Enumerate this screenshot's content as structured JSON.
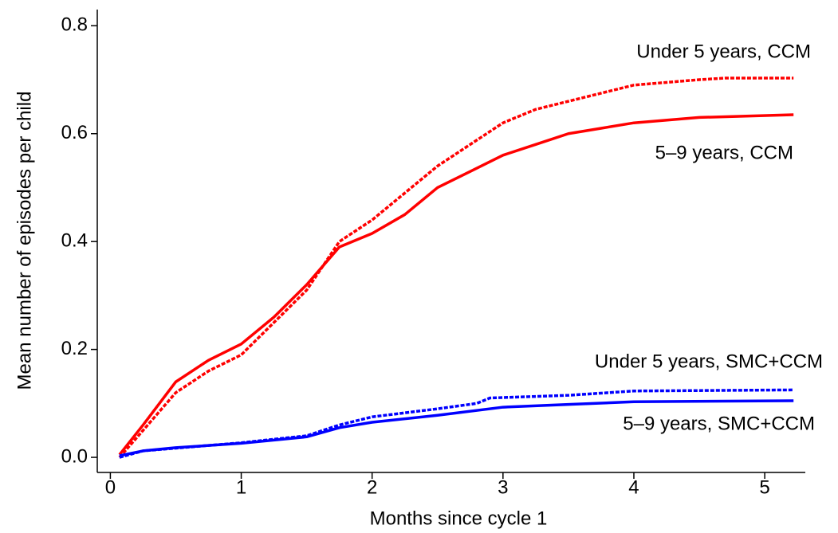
{
  "chart_data": {
    "type": "line",
    "xlabel": "Months since cycle 1",
    "ylabel": "Mean number of episodes per child",
    "xlim": [
      -0.1,
      5.31
    ],
    "ylim": [
      -0.028,
      0.83
    ],
    "xticks": [
      0,
      1,
      2,
      3,
      4,
      5
    ],
    "yticks": [
      {
        "value": 0,
        "label": "0.0"
      },
      {
        "value": 0.2,
        "label": "0.2"
      },
      {
        "value": 0.4,
        "label": "0.4"
      },
      {
        "value": 0.6,
        "label": "0.6"
      },
      {
        "value": 0.8,
        "label": "0.8"
      }
    ],
    "grid": false,
    "series": [
      {
        "name": "Under 5 years, CCM",
        "color": "#ff0000",
        "dashed": true,
        "x": [
          0.07,
          0.25,
          0.5,
          0.75,
          1.0,
          1.25,
          1.5,
          1.75,
          2.0,
          2.25,
          2.5,
          2.75,
          3.0,
          3.25,
          3.5,
          3.75,
          4.0,
          4.5,
          4.7,
          5.22
        ],
        "values": [
          0.0,
          0.05,
          0.12,
          0.16,
          0.19,
          0.25,
          0.31,
          0.4,
          0.44,
          0.49,
          0.54,
          0.58,
          0.62,
          0.645,
          0.66,
          0.675,
          0.69,
          0.7,
          0.703,
          0.703
        ]
      },
      {
        "name": "5–9 years, CCM",
        "color": "#ff0000",
        "dashed": false,
        "x": [
          0.07,
          0.25,
          0.5,
          0.75,
          1.0,
          1.25,
          1.5,
          1.75,
          2.0,
          2.25,
          2.5,
          2.75,
          3.0,
          3.25,
          3.5,
          3.75,
          4.0,
          4.5,
          5.22
        ],
        "values": [
          0.005,
          0.06,
          0.14,
          0.18,
          0.21,
          0.26,
          0.32,
          0.39,
          0.415,
          0.45,
          0.5,
          0.53,
          0.56,
          0.58,
          0.6,
          0.61,
          0.62,
          0.63,
          0.635
        ]
      },
      {
        "name": "Under 5 years, SMC+CCM",
        "color": "#0000ff",
        "dashed": true,
        "x": [
          0.07,
          0.25,
          0.5,
          1.0,
          1.5,
          1.75,
          2.0,
          2.5,
          2.8,
          2.9,
          3.5,
          4.0,
          5.22
        ],
        "values": [
          0.0,
          0.012,
          0.017,
          0.027,
          0.04,
          0.06,
          0.075,
          0.09,
          0.1,
          0.11,
          0.115,
          0.123,
          0.125
        ]
      },
      {
        "name": "5–9 years, SMC+CCM",
        "color": "#0000ff",
        "dashed": false,
        "x": [
          0.07,
          0.25,
          0.5,
          1.0,
          1.5,
          1.75,
          2.0,
          2.5,
          3.0,
          3.5,
          4.0,
          5.22
        ],
        "values": [
          0.003,
          0.012,
          0.018,
          0.026,
          0.038,
          0.055,
          0.065,
          0.078,
          0.093,
          0.098,
          0.103,
          0.105
        ]
      }
    ]
  }
}
